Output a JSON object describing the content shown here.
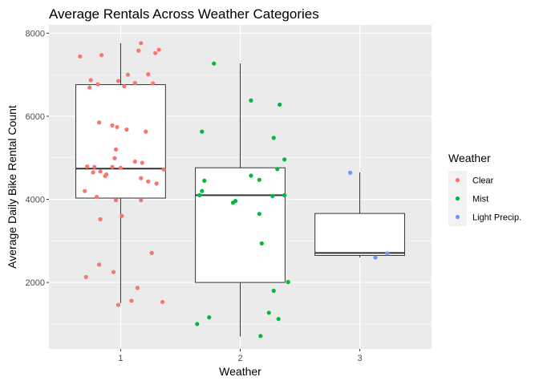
{
  "chart_data": {
    "type": "box",
    "title": "Average Rentals Across Weather Categories",
    "xlabel": "Weather",
    "ylabel": "Average Daily Bike Rental Count",
    "categories": [
      "1",
      "2",
      "3"
    ],
    "ylim": [
      400,
      8200
    ],
    "yticks": [
      2000,
      4000,
      6000,
      8000
    ],
    "grid": true,
    "legend": {
      "title": "Weather",
      "position": "right",
      "entries": [
        {
          "label": "Clear",
          "color": "#F8766D"
        },
        {
          "label": "Mist",
          "color": "#00BA38"
        },
        {
          "label": "Light Precip.",
          "color": "#619CFF"
        }
      ]
    },
    "boxes": [
      {
        "category": "1",
        "min": 1500,
        "q1": 4030,
        "median": 4740,
        "q3": 6760,
        "max": 7760,
        "color": "#F8766D"
      },
      {
        "category": "2",
        "min": 700,
        "q1": 2000,
        "median": 4100,
        "q3": 4760,
        "max": 7270,
        "color": "#00BA38"
      },
      {
        "category": "3",
        "min": 2600,
        "q1": 2650,
        "median": 2710,
        "q3": 3660,
        "max": 4650,
        "color": "#619CFF"
      }
    ],
    "points": [
      {
        "group": 1,
        "x": 0.66,
        "y": 7440
      },
      {
        "group": 1,
        "x": 0.75,
        "y": 6870
      },
      {
        "group": 1,
        "x": 0.74,
        "y": 6690
      },
      {
        "group": 1,
        "x": 0.84,
        "y": 7470
      },
      {
        "group": 1,
        "x": 0.81,
        "y": 6770
      },
      {
        "group": 1,
        "x": 0.98,
        "y": 6850
      },
      {
        "group": 1,
        "x": 1.03,
        "y": 6720
      },
      {
        "group": 1,
        "x": 1.06,
        "y": 7000
      },
      {
        "group": 1,
        "x": 1.12,
        "y": 6800
      },
      {
        "group": 1,
        "x": 1.15,
        "y": 7580
      },
      {
        "group": 1,
        "x": 1.17,
        "y": 7760
      },
      {
        "group": 1,
        "x": 1.23,
        "y": 7010
      },
      {
        "group": 1,
        "x": 1.27,
        "y": 6790
      },
      {
        "group": 1,
        "x": 1.32,
        "y": 7600
      },
      {
        "group": 1,
        "x": 1.29,
        "y": 7520
      },
      {
        "group": 1,
        "x": 0.82,
        "y": 5850
      },
      {
        "group": 1,
        "x": 0.93,
        "y": 5780
      },
      {
        "group": 1,
        "x": 0.97,
        "y": 5740
      },
      {
        "group": 1,
        "x": 1.05,
        "y": 5680
      },
      {
        "group": 1,
        "x": 1.21,
        "y": 5630
      },
      {
        "group": 1,
        "x": 0.96,
        "y": 5200
      },
      {
        "group": 1,
        "x": 0.95,
        "y": 4990
      },
      {
        "group": 1,
        "x": 1.12,
        "y": 4910
      },
      {
        "group": 1,
        "x": 1.18,
        "y": 4880
      },
      {
        "group": 1,
        "x": 0.72,
        "y": 4790
      },
      {
        "group": 1,
        "x": 0.78,
        "y": 4780
      },
      {
        "group": 1,
        "x": 0.93,
        "y": 4780
      },
      {
        "group": 1,
        "x": 1.0,
        "y": 4760
      },
      {
        "group": 1,
        "x": 0.77,
        "y": 4650
      },
      {
        "group": 1,
        "x": 0.83,
        "y": 4670
      },
      {
        "group": 1,
        "x": 0.88,
        "y": 4600
      },
      {
        "group": 1,
        "x": 0.87,
        "y": 4560
      },
      {
        "group": 1,
        "x": 1.36,
        "y": 4720
      },
      {
        "group": 1,
        "x": 1.17,
        "y": 4510
      },
      {
        "group": 1,
        "x": 1.23,
        "y": 4430
      },
      {
        "group": 1,
        "x": 1.3,
        "y": 4380
      },
      {
        "group": 1,
        "x": 0.7,
        "y": 4200
      },
      {
        "group": 1,
        "x": 0.8,
        "y": 4060
      },
      {
        "group": 1,
        "x": 0.96,
        "y": 3980
      },
      {
        "group": 1,
        "x": 1.17,
        "y": 3980
      },
      {
        "group": 1,
        "x": 1.01,
        "y": 3600
      },
      {
        "group": 1,
        "x": 0.83,
        "y": 3520
      },
      {
        "group": 1,
        "x": 1.26,
        "y": 2710
      },
      {
        "group": 1,
        "x": 0.82,
        "y": 2430
      },
      {
        "group": 1,
        "x": 0.94,
        "y": 2250
      },
      {
        "group": 1,
        "x": 0.71,
        "y": 2130
      },
      {
        "group": 1,
        "x": 1.14,
        "y": 1870
      },
      {
        "group": 1,
        "x": 1.09,
        "y": 1560
      },
      {
        "group": 1,
        "x": 1.35,
        "y": 1530
      },
      {
        "group": 1,
        "x": 0.98,
        "y": 1460
      },
      {
        "group": 2,
        "x": 1.78,
        "y": 7270
      },
      {
        "group": 2,
        "x": 2.33,
        "y": 6280
      },
      {
        "group": 2,
        "x": 2.09,
        "y": 6380
      },
      {
        "group": 2,
        "x": 1.68,
        "y": 5630
      },
      {
        "group": 2,
        "x": 2.28,
        "y": 5480
      },
      {
        "group": 2,
        "x": 2.37,
        "y": 4960
      },
      {
        "group": 2,
        "x": 2.31,
        "y": 4730
      },
      {
        "group": 2,
        "x": 2.09,
        "y": 4570
      },
      {
        "group": 2,
        "x": 2.16,
        "y": 4470
      },
      {
        "group": 2,
        "x": 1.7,
        "y": 4450
      },
      {
        "group": 2,
        "x": 1.68,
        "y": 4200
      },
      {
        "group": 2,
        "x": 1.66,
        "y": 4100
      },
      {
        "group": 2,
        "x": 2.27,
        "y": 4080
      },
      {
        "group": 2,
        "x": 2.37,
        "y": 4100
      },
      {
        "group": 2,
        "x": 1.96,
        "y": 3960
      },
      {
        "group": 2,
        "x": 1.94,
        "y": 3920
      },
      {
        "group": 2,
        "x": 2.16,
        "y": 3650
      },
      {
        "group": 2,
        "x": 2.18,
        "y": 2940
      },
      {
        "group": 2,
        "x": 2.4,
        "y": 2010
      },
      {
        "group": 2,
        "x": 2.28,
        "y": 1800
      },
      {
        "group": 2,
        "x": 2.24,
        "y": 1270
      },
      {
        "group": 2,
        "x": 1.74,
        "y": 1160
      },
      {
        "group": 2,
        "x": 2.32,
        "y": 1120
      },
      {
        "group": 2,
        "x": 1.64,
        "y": 1000
      },
      {
        "group": 2,
        "x": 2.17,
        "y": 710
      },
      {
        "group": 3,
        "x": 2.92,
        "y": 4640
      },
      {
        "group": 3,
        "x": 3.13,
        "y": 2600
      },
      {
        "group": 3,
        "x": 3.23,
        "y": 2700
      }
    ]
  }
}
